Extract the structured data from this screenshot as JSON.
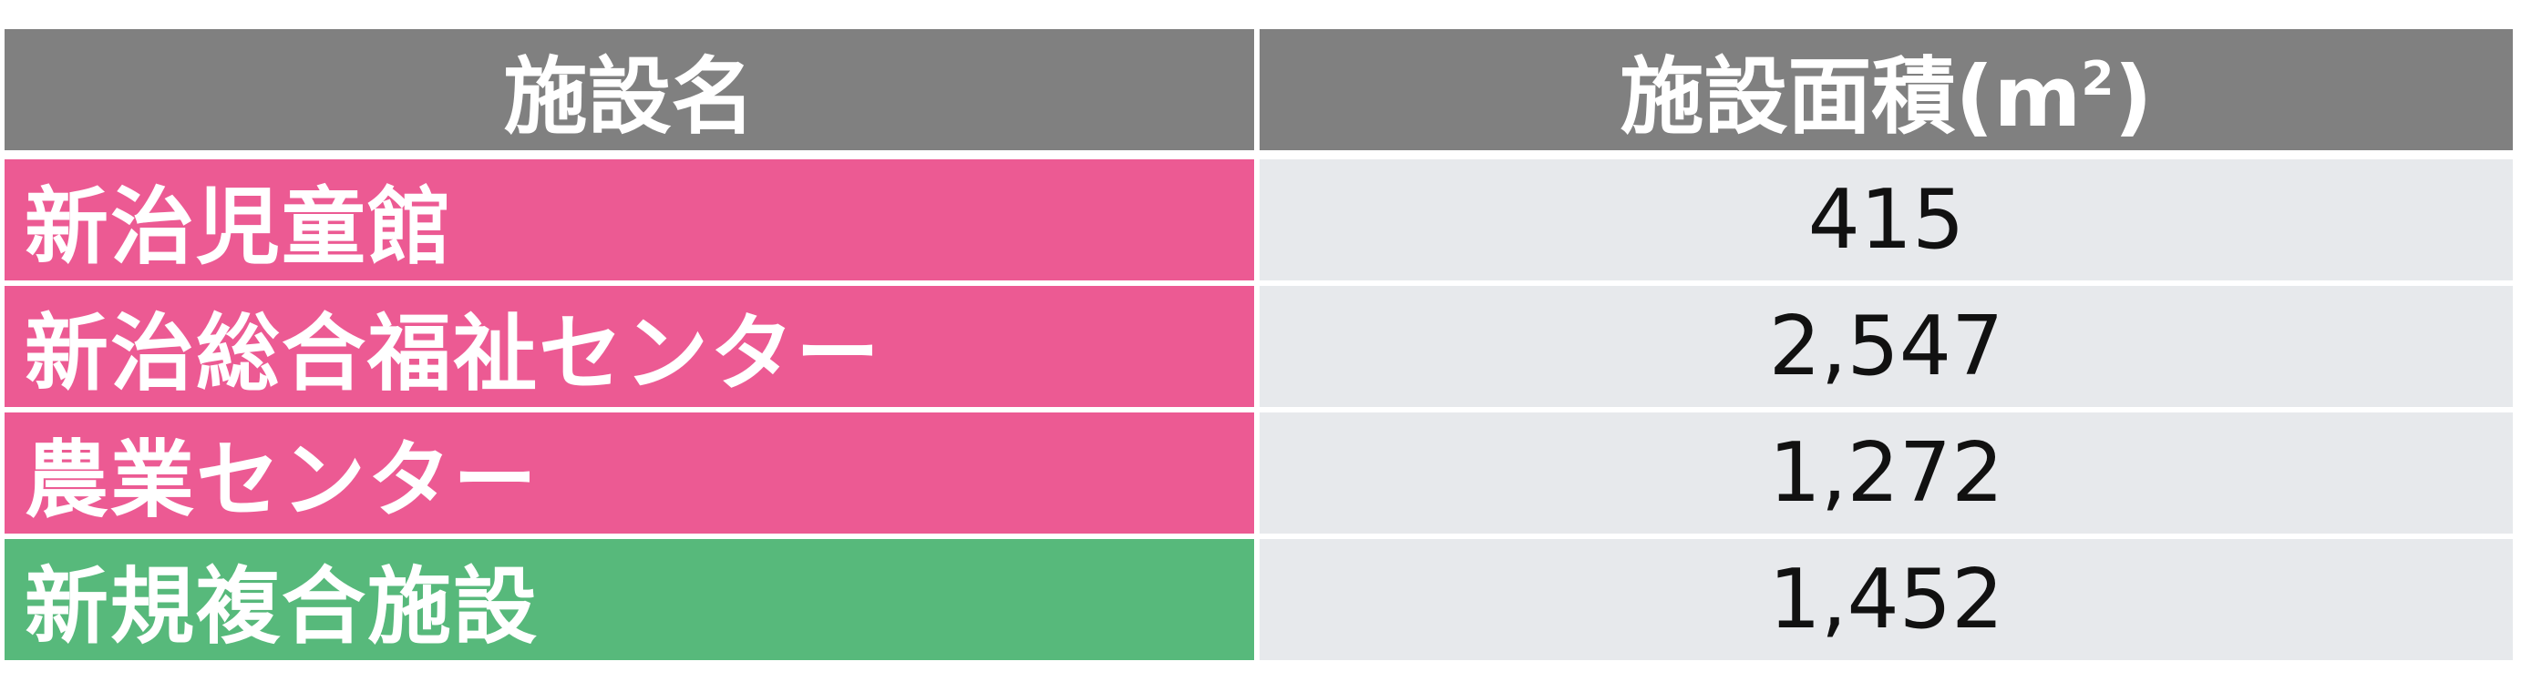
{
  "table": {
    "headers": {
      "name": "施設名",
      "area_prefix": "施設面積(m",
      "area_sup": "2",
      "area_suffix": ")"
    },
    "rows": [
      {
        "name": "新治児童館",
        "area": "415",
        "color": "#ec5a93"
      },
      {
        "name": "新治総合福祉センター",
        "area": "2,547",
        "color": "#ec5a93"
      },
      {
        "name": "農業センター",
        "area": "1,272",
        "color": "#ec5a93"
      },
      {
        "name": "新規複合施設",
        "area": "1,452",
        "color": "#57b97b"
      }
    ],
    "colors": {
      "header_bg": "#808080",
      "existing_facility": "#ec5a93",
      "new_facility": "#57b97b",
      "value_bg": "#e7e9ec"
    }
  }
}
